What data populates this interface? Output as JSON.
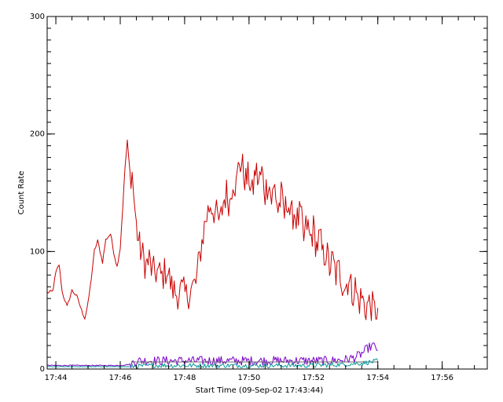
{
  "chart_data": {
    "type": "line",
    "title": "",
    "xlabel": "Start Time (09-Sep-02 17:43:44)",
    "ylabel": "Count Rate",
    "x_unit": "minutes after 17:44",
    "xlim": [
      -0.27,
      13.4
    ],
    "ylim": [
      0,
      300
    ],
    "x_ticks": [
      {
        "v": 0,
        "label": "17:44"
      },
      {
        "v": 2,
        "label": "17:46"
      },
      {
        "v": 4,
        "label": "17:48"
      },
      {
        "v": 6,
        "label": "17:50"
      },
      {
        "v": 8,
        "label": "17:52"
      },
      {
        "v": 10,
        "label": "17:54"
      },
      {
        "v": 12,
        "label": "17:56"
      }
    ],
    "x_minor_step": 0.5,
    "y_ticks": [
      {
        "v": 0,
        "label": "0"
      },
      {
        "v": 100,
        "label": "100"
      },
      {
        "v": 200,
        "label": "200"
      },
      {
        "v": 300,
        "label": "300"
      }
    ],
    "y_minor_step": 10,
    "grid": false,
    "legend": "none",
    "series": [
      {
        "color": "#c80000",
        "x": [
          -0.27,
          -0.1,
          0.0,
          0.1,
          0.2,
          0.35,
          0.5,
          0.65,
          0.8,
          0.9,
          1.0,
          1.1,
          1.2,
          1.3,
          1.45,
          1.55,
          1.7,
          1.8,
          1.9,
          2.0,
          2.08,
          2.15,
          2.22,
          2.3,
          2.37,
          2.42,
          2.5,
          2.6,
          2.7,
          2.8,
          2.9,
          3.0,
          3.15,
          3.3,
          3.45,
          3.6,
          3.75,
          3.9,
          4.05,
          4.2,
          4.35,
          4.5,
          4.65,
          4.8,
          4.95,
          5.1,
          5.2,
          5.3,
          5.4,
          5.5,
          5.6,
          5.7,
          5.8,
          5.9,
          6.0,
          6.1,
          6.2,
          6.3,
          6.4,
          6.5,
          6.6,
          6.7,
          6.8,
          6.9,
          7.0,
          7.1,
          7.2,
          7.3,
          7.4,
          7.5,
          7.6,
          7.7,
          7.8,
          7.9,
          8.0,
          8.1,
          8.2,
          8.3,
          8.4,
          8.5,
          8.6,
          8.7,
          8.8,
          8.9,
          9.0,
          9.1,
          9.2,
          9.3,
          9.4,
          9.5,
          9.6,
          9.7,
          9.8,
          9.9,
          10.0
        ],
        "y": [
          65,
          66,
          82,
          89,
          65,
          53,
          67,
          62,
          50,
          43,
          56,
          77,
          101,
          109,
          91,
          110,
          115,
          99,
          87,
          103,
          139,
          172,
          194,
          168,
          166,
          148,
          121,
          104,
          96,
          88,
          93,
          82,
          83,
          78,
          86,
          69,
          64,
          67,
          62,
          68,
          73,
          102,
          127,
          141,
          133,
          124,
          142,
          150,
          141,
          163,
          155,
          178,
          171,
          160,
          164,
          148,
          170,
          159,
          167,
          150,
          161,
          144,
          155,
          135,
          147,
          131,
          146,
          128,
          134,
          126,
          132,
          110,
          124,
          110,
          119,
          104,
          112,
          95,
          101,
          86,
          92,
          80,
          85,
          74,
          70,
          78,
          65,
          70,
          56,
          62,
          51,
          56,
          54,
          49,
          52
        ],
        "noise": 14
      },
      {
        "color": "#7a00c8",
        "x": [
          -0.27,
          0.5,
          1.0,
          1.5,
          2.0,
          2.3,
          2.5,
          3.0,
          3.5,
          4.0,
          4.5,
          5.0,
          5.5,
          6.0,
          6.5,
          7.0,
          7.5,
          8.0,
          8.5,
          9.0,
          9.3,
          9.5,
          9.7,
          9.85,
          10.0
        ],
        "y": [
          3,
          3,
          3,
          3,
          3,
          4,
          7,
          7,
          7,
          7,
          7,
          7,
          7,
          7,
          7,
          7,
          7,
          7,
          7,
          8,
          10,
          13,
          18,
          20,
          16
        ],
        "noise": 4
      },
      {
        "color": "#6a6a6a",
        "x": [
          2.35,
          10.0
        ],
        "y": [
          6,
          6
        ],
        "noise": 0
      },
      {
        "color": "#0a9a9a",
        "x": [
          -0.27,
          2.0,
          2.3,
          3.0,
          4.0,
          5.0,
          6.0,
          7.0,
          8.0,
          9.0,
          9.5,
          9.8,
          10.0
        ],
        "y": [
          2,
          2,
          2,
          3,
          3,
          3,
          3,
          3,
          3,
          4,
          5,
          6,
          7
        ],
        "noise": 2
      }
    ]
  }
}
